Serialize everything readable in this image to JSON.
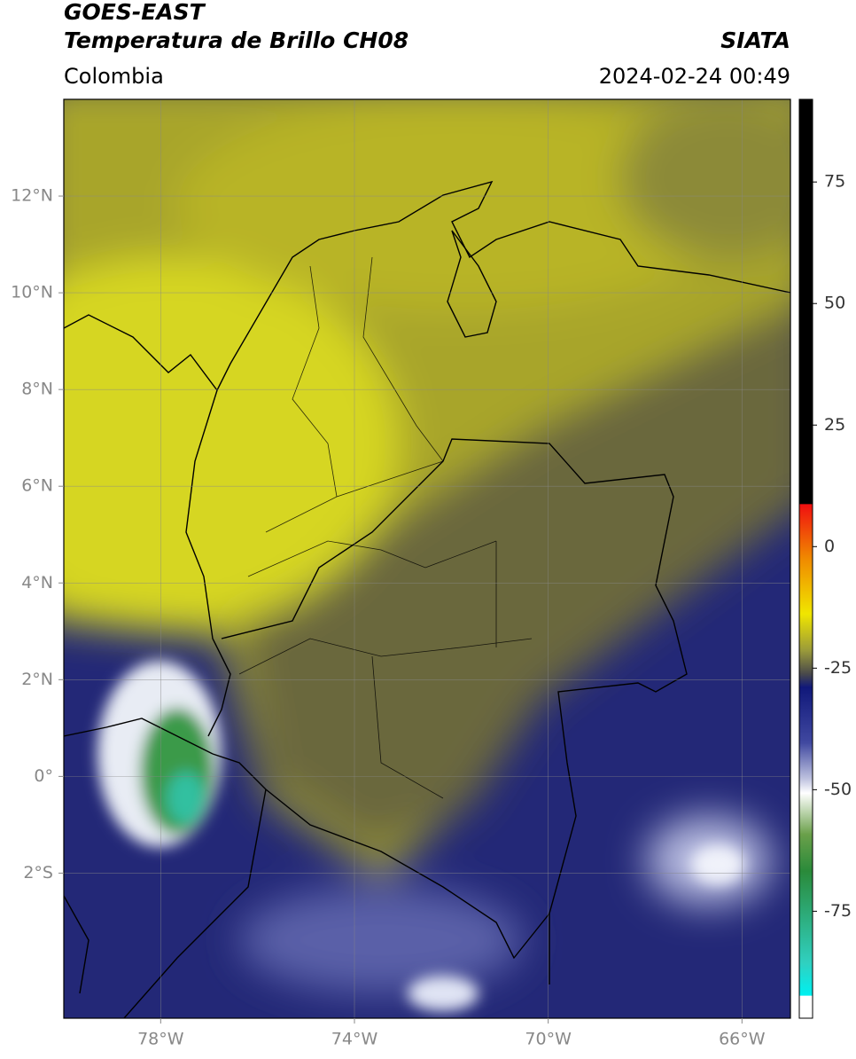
{
  "header": {
    "title": "GOES-EAST",
    "subtitle": "Temperatura de Brillo CH08",
    "source": "SIATA",
    "region": "Colombia",
    "timestamp": "2024-02-24 00:49"
  },
  "map": {
    "xlim": [
      -80,
      -65
    ],
    "ylim": [
      -5,
      14
    ],
    "xticks": [
      {
        "value": -78,
        "label": "78°W"
      },
      {
        "value": -74,
        "label": "74°W"
      },
      {
        "value": -70,
        "label": "70°W"
      },
      {
        "value": -66,
        "label": "66°W"
      }
    ],
    "yticks": [
      {
        "value": 12,
        "label": "12°N"
      },
      {
        "value": 10,
        "label": "10°N"
      },
      {
        "value": 8,
        "label": "8°N"
      },
      {
        "value": 6,
        "label": "6°N"
      },
      {
        "value": 4,
        "label": "4°N"
      },
      {
        "value": 2,
        "label": "2°N"
      },
      {
        "value": 0,
        "label": "0°"
      },
      {
        "value": -2,
        "label": "2°S"
      }
    ],
    "grid": true
  },
  "colorbar": {
    "lim": [
      -97,
      92
    ],
    "ticks": [
      75,
      50,
      25,
      0,
      -25,
      -50,
      -75
    ]
  }
}
